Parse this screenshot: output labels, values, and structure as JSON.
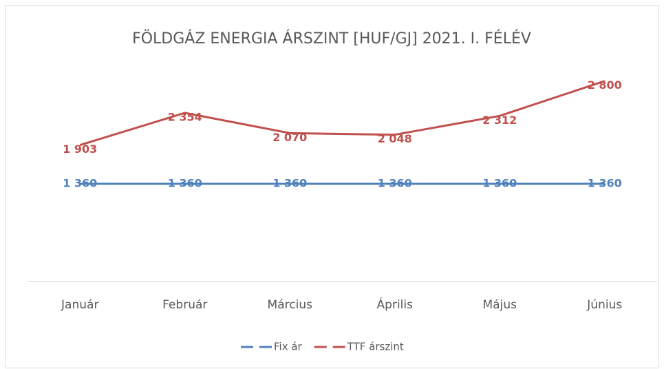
{
  "chart_data": {
    "type": "line",
    "title": "FÖLDGÁZ ENERGIA ÁRSZINT [HUF/GJ] 2021. I. FÉLÉV",
    "categories": [
      "Január",
      "Február",
      "Március",
      "Április",
      "Május",
      "Június"
    ],
    "series": [
      {
        "name": "Fix ár",
        "color": "#4f81bd",
        "values": [
          1360,
          1360,
          1360,
          1360,
          1360,
          1360
        ],
        "value_labels": [
          "1 360",
          "1 360",
          "1 360",
          "1 360",
          "1 360",
          "1 360"
        ]
      },
      {
        "name": "TTF árszint",
        "color": "#c0504d",
        "values": [
          1903,
          2354,
          2070,
          2048,
          2312,
          2800
        ],
        "value_labels": [
          "1 903",
          "2 354",
          "2 070",
          "2 048",
          "2 312",
          "2 800"
        ]
      }
    ],
    "ylim": [
      0,
      3000
    ],
    "legend": "bottom"
  }
}
